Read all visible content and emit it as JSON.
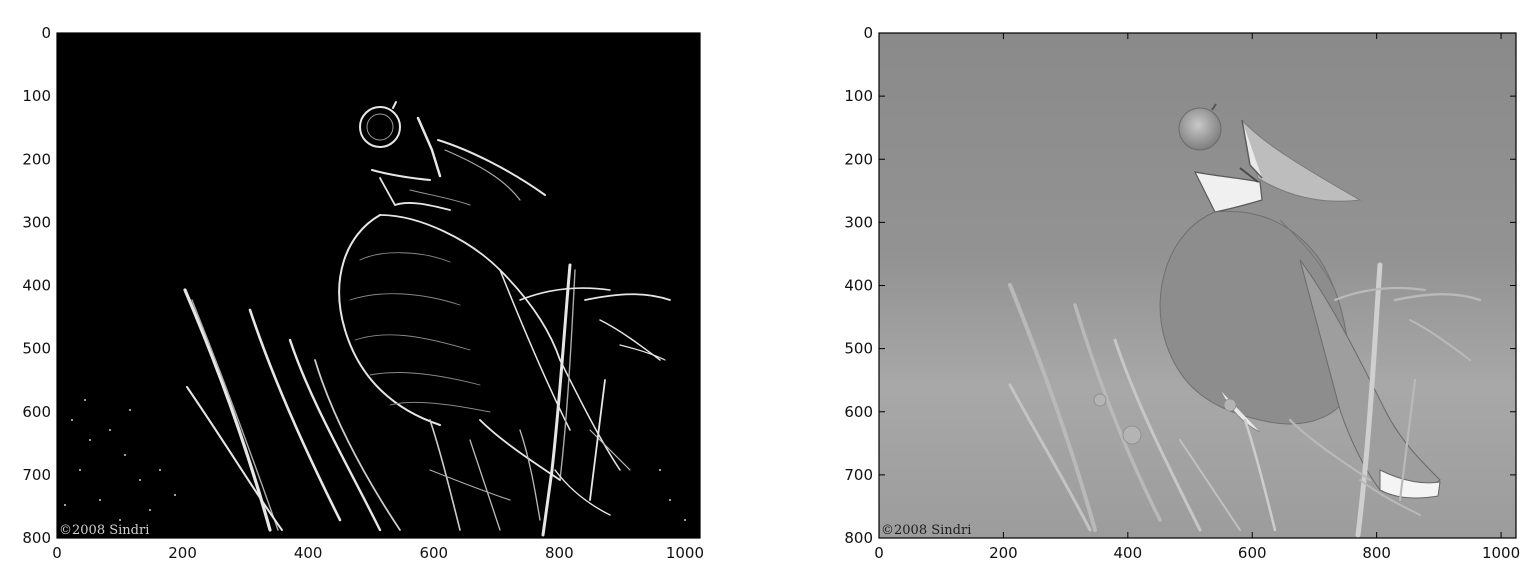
{
  "chart_data": [
    {
      "type": "image",
      "title": "",
      "xlabel": "",
      "ylabel": "",
      "xlim": [
        0,
        1024
      ],
      "ylim": [
        800,
        0
      ],
      "xticks": [
        "0",
        "200",
        "400",
        "600",
        "800",
        "1000"
      ],
      "yticks": [
        "0",
        "100",
        "200",
        "300",
        "400",
        "500",
        "600",
        "700",
        "800"
      ],
      "image_style": "edge-detected, white edges on black background",
      "watermark": "©2008 Sindri"
    },
    {
      "type": "image",
      "title": "",
      "xlabel": "",
      "ylabel": "",
      "xlim": [
        0,
        1024
      ],
      "ylim": [
        800,
        0
      ],
      "xticks": [
        "0",
        "200",
        "400",
        "600",
        "800",
        "1000"
      ],
      "yticks": [
        "0",
        "100",
        "200",
        "300",
        "400",
        "500",
        "600",
        "700",
        "800"
      ],
      "image_style": "grayscale, inverted tones on gray background",
      "watermark": "©2008 Sindri"
    }
  ]
}
